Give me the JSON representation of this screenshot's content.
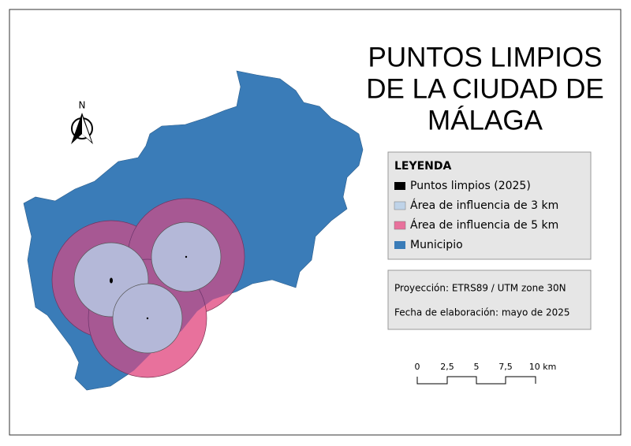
{
  "title": {
    "lines": [
      "PUNTOS LIMPIOS",
      "DE LA CIUDAD DE",
      "MÁLAGA"
    ]
  },
  "north": "N",
  "legend": {
    "title": "LEYENDA",
    "items": [
      "Puntos limpios (2025)",
      "Área de influencia de 3 km",
      "Área de influencia de 5 km",
      "Municipio"
    ]
  },
  "info": {
    "projection": "Proyección: ETRS89 / UTM zone 30N",
    "date": "Fecha de elaboración: mayo de 2025"
  },
  "scale_bar": {
    "labels": [
      "0",
      "2,5",
      "5",
      "7,5",
      "10 km"
    ]
  }
}
